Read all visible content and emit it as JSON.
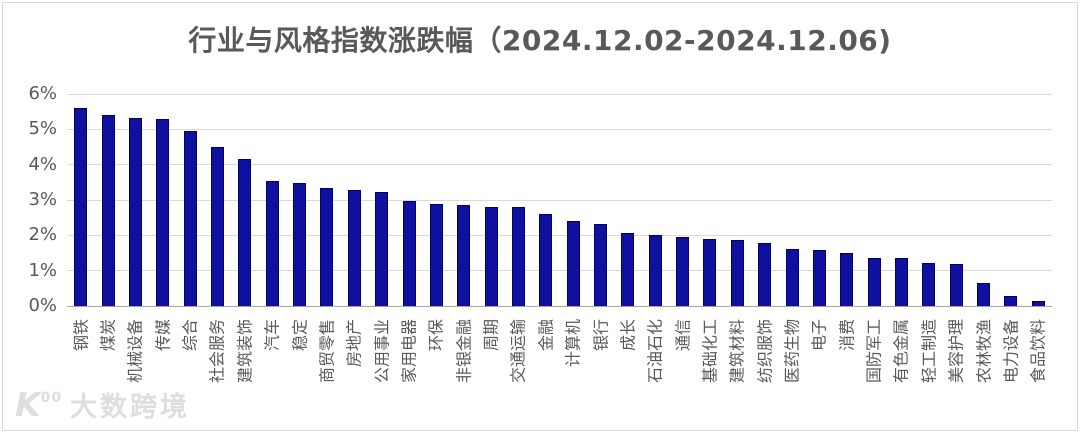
{
  "title": "行业与风格指数涨跌幅（2024.12.02-2024.12.06)",
  "watermark": {
    "logo": "K00",
    "text": "大数跨境"
  },
  "chart_data": {
    "type": "bar",
    "title": "行业与风格指数涨跌幅（2024.12.02-2024.12.06)",
    "categories": [
      "钢铁",
      "煤炭",
      "机械设备",
      "传媒",
      "综合",
      "社会服务",
      "建筑装饰",
      "汽车",
      "稳定",
      "商贸零售",
      "房地产",
      "公用事业",
      "家用电器",
      "环保",
      "非银金融",
      "周期",
      "交通运输",
      "金融",
      "计算机",
      "银行",
      "成长",
      "石油石化",
      "通信",
      "基础化工",
      "建筑材料",
      "纺织服饰",
      "医药生物",
      "电子",
      "消费",
      "国防军工",
      "有色金属",
      "轻工制造",
      "美容护理",
      "农林牧渔",
      "电力设备",
      "食品饮料"
    ],
    "values": [
      5.6,
      5.41,
      5.31,
      5.28,
      4.95,
      4.5,
      4.17,
      3.54,
      3.47,
      3.35,
      3.27,
      3.24,
      2.96,
      2.9,
      2.86,
      2.81,
      2.79,
      2.6,
      2.42,
      2.33,
      2.07,
      2.02,
      1.95,
      1.9,
      1.86,
      1.78,
      1.6,
      1.58,
      1.5,
      1.37,
      1.35,
      1.21,
      1.19,
      0.64,
      0.28,
      0.15
    ],
    "unit": "%",
    "xlabel": "",
    "ylabel": "",
    "ylim": [
      0,
      6
    ],
    "yticks": [
      "6%",
      "5%",
      "4%",
      "3%",
      "2%",
      "1%",
      "0%"
    ],
    "grid": true,
    "legend": "none",
    "bar_color": "#0f0fa0",
    "bar_border_color": "#000066",
    "gridline_color": "#d9d9d9",
    "axis_text_color": "#595959",
    "title_color": "#595959"
  }
}
